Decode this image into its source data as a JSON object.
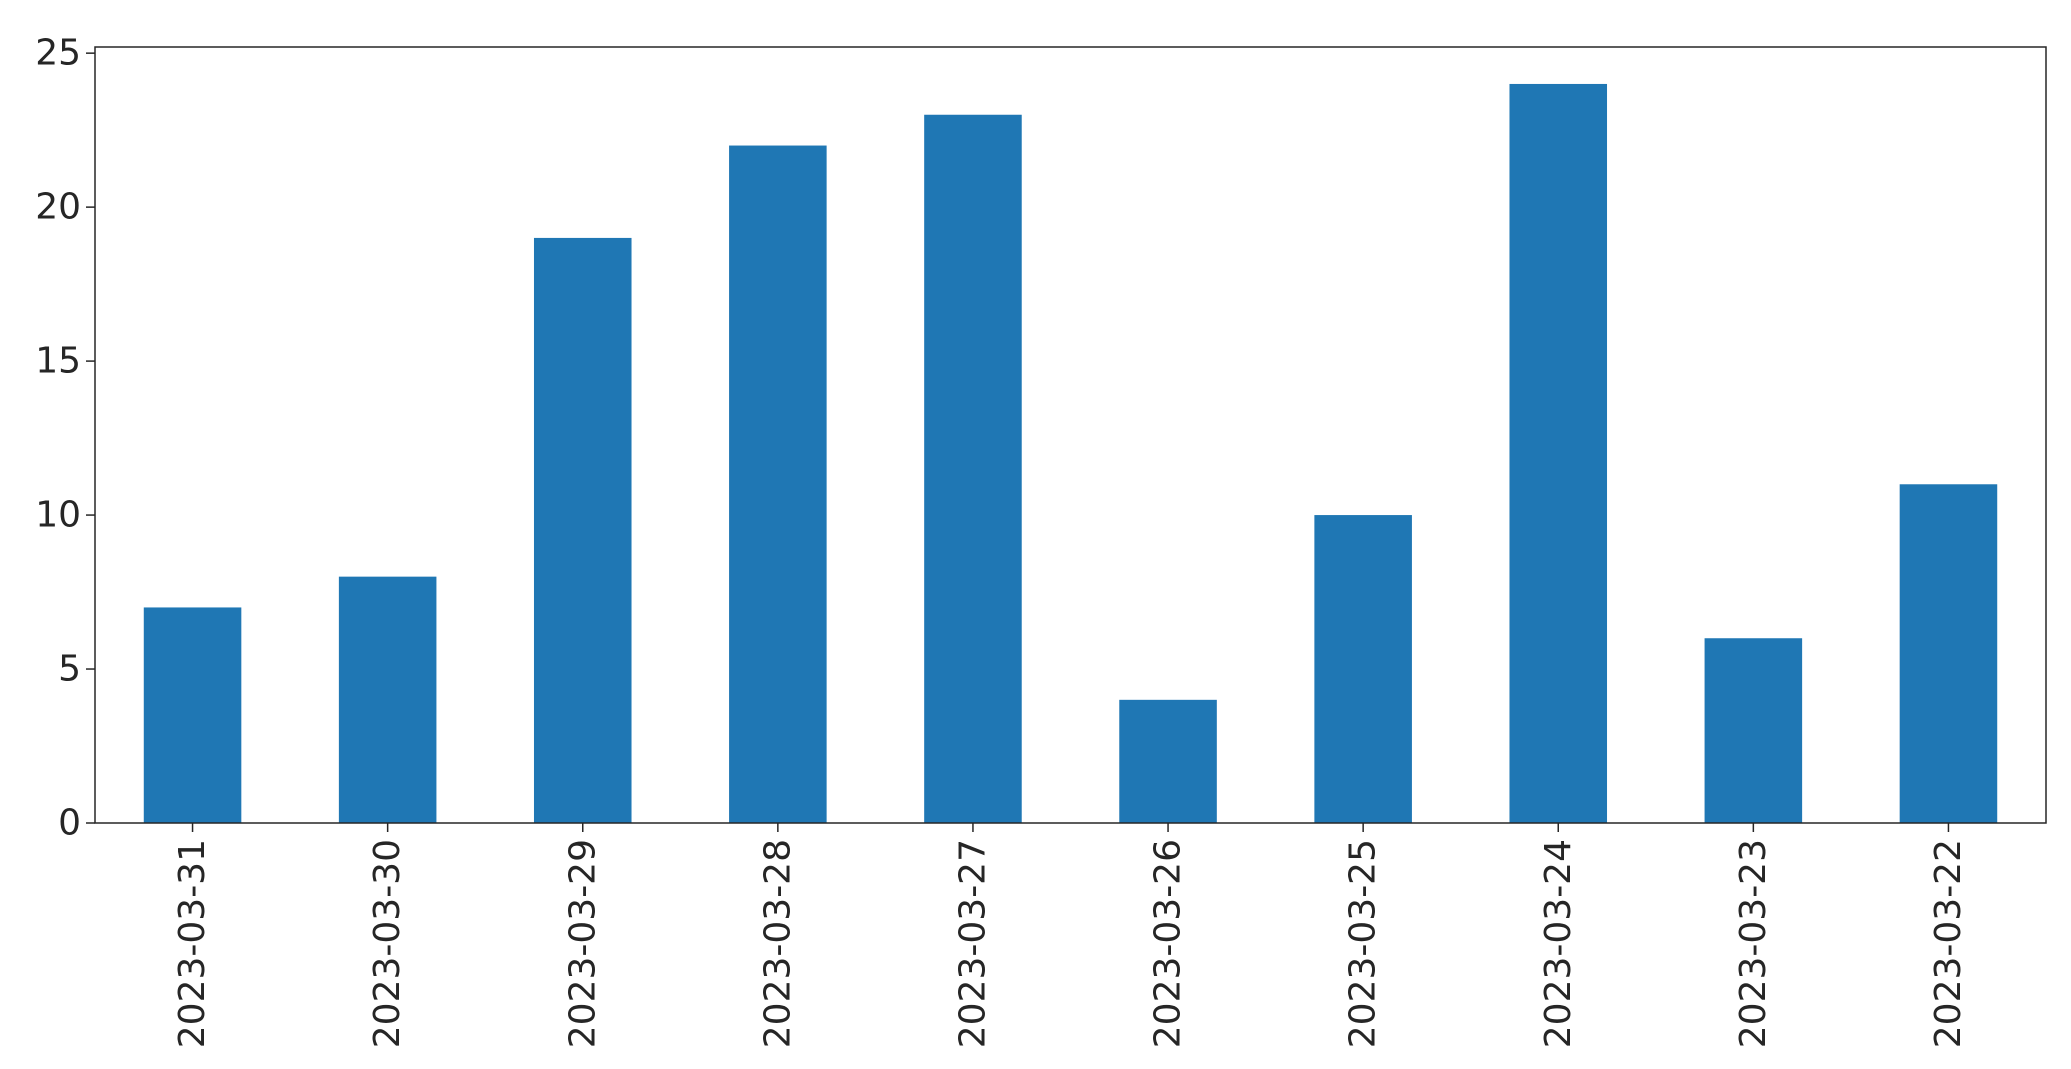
{
  "chart_data": {
    "type": "bar",
    "categories": [
      "2023-03-31",
      "2023-03-30",
      "2023-03-29",
      "2023-03-28",
      "2023-03-27",
      "2023-03-26",
      "2023-03-25",
      "2023-03-24",
      "2023-03-23",
      "2023-03-22"
    ],
    "values": [
      7,
      8,
      19,
      22,
      23,
      4,
      10,
      24,
      6,
      11
    ],
    "yticks": [
      "0",
      "5",
      "10",
      "15",
      "20",
      "25"
    ],
    "ylim": [
      0,
      25.2
    ],
    "bar_color": "#1f77b4",
    "grid": false,
    "legend": "none"
  }
}
